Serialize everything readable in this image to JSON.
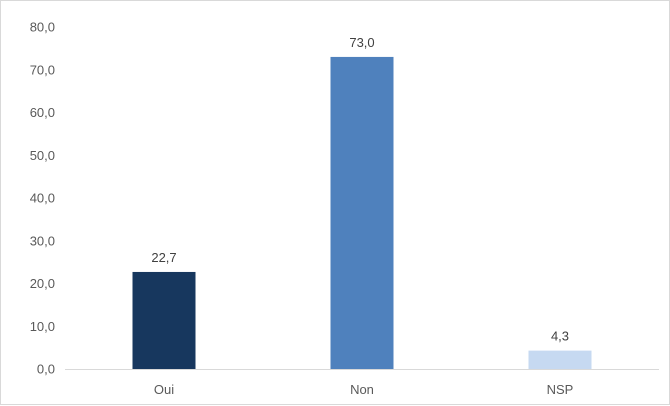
{
  "chart_data": {
    "type": "bar",
    "categories": [
      "Oui",
      "Non",
      "NSP"
    ],
    "values": [
      22.7,
      73.0,
      4.3
    ],
    "value_labels": [
      "22,7",
      "73,0",
      "4,3"
    ],
    "colors": [
      "#17375e",
      "#4f81bd",
      "#c6d9f1"
    ],
    "title": "",
    "xlabel": "",
    "ylabel": "",
    "ylim": [
      0,
      80
    ],
    "yticks": [
      0,
      10,
      20,
      30,
      40,
      50,
      60,
      70,
      80
    ],
    "ytick_labels": [
      "0,0",
      "10,0",
      "20,0",
      "30,0",
      "40,0",
      "50,0",
      "60,0",
      "70,0",
      "80,0"
    ],
    "grid": false,
    "legend": "none"
  }
}
